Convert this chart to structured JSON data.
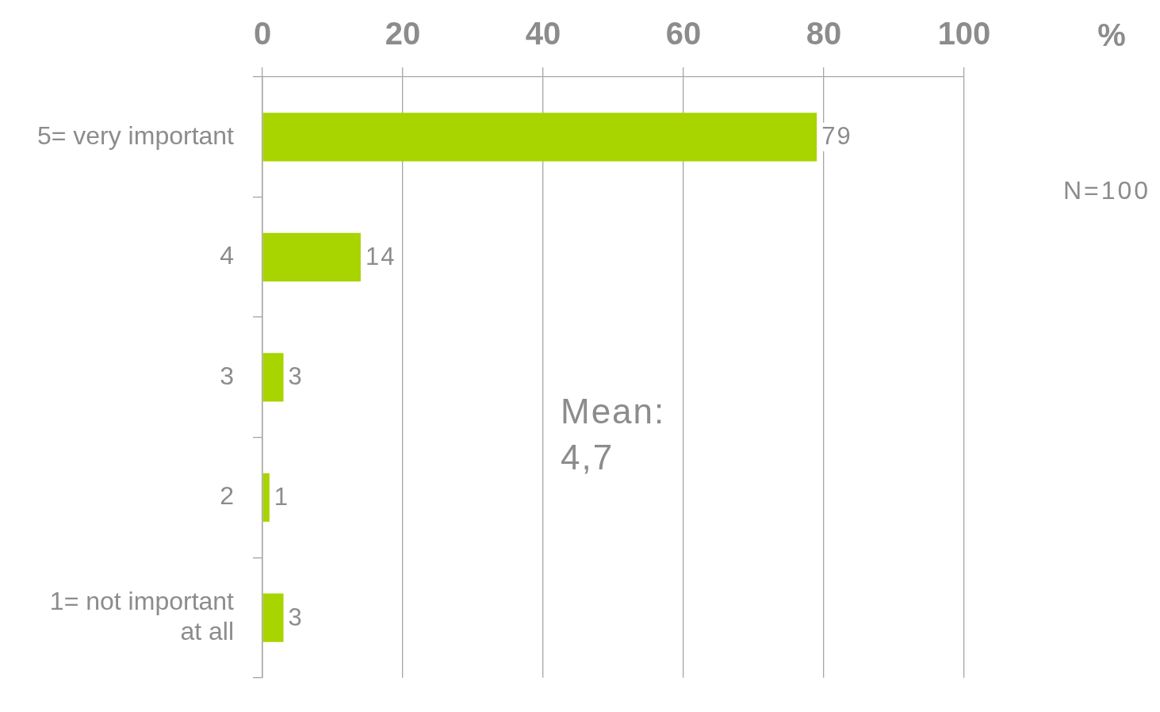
{
  "chart_data": {
    "type": "bar",
    "orientation": "horizontal",
    "categories": [
      "5= very important",
      "4",
      "3",
      "2",
      "1= not important at all"
    ],
    "values": [
      79,
      14,
      3,
      1,
      3
    ],
    "color": "#a8d400",
    "xlim": [
      0,
      100
    ],
    "xticks": [
      0,
      20,
      40,
      60,
      80,
      100
    ],
    "xlabel": "%",
    "grid": "x",
    "legend": false,
    "data_labels": true,
    "annotations": [
      "N=100",
      "Mean: 4,7"
    ]
  }
}
